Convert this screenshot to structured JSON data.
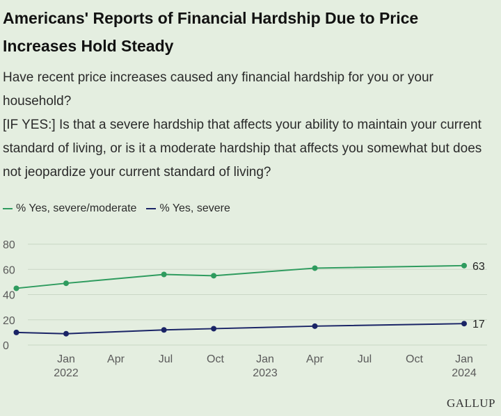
{
  "title": "Americans' Reports of Financial Hardship Due to Price Increases Hold Steady",
  "question_line1": "Have recent price increases caused any financial hardship for you or your household?",
  "question_line2": "[IF YES:] Is that a severe hardship that affects your ability to maintain your current standard of living, or is it a moderate hardship that affects you somewhat but does not jeopardize your current standard of living?",
  "source_logo": "GALLUP",
  "colors": {
    "background": "#e4eee0",
    "severe_moderate": "#2e9b5e",
    "severe": "#1a2466",
    "grid": "#c9d6c5"
  },
  "chart_data": {
    "type": "line",
    "title": "Americans' Reports of Financial Hardship Due to Price Increases Hold Steady",
    "xlabel": "",
    "ylabel": "",
    "ylim": [
      0,
      80
    ],
    "yticks": [
      0,
      20,
      40,
      60,
      80
    ],
    "xlim_months": [
      0,
      26.5
    ],
    "xticks": [
      {
        "month": 3.5,
        "label": "Jan",
        "year": "2022"
      },
      {
        "month": 6.5,
        "label": "Apr",
        "year": ""
      },
      {
        "month": 9.5,
        "label": "Jul",
        "year": ""
      },
      {
        "month": 12.5,
        "label": "Oct",
        "year": ""
      },
      {
        "month": 15.5,
        "label": "Jan",
        "year": "2023"
      },
      {
        "month": 18.5,
        "label": "Apr",
        "year": ""
      },
      {
        "month": 21.5,
        "label": "Jul",
        "year": ""
      },
      {
        "month": 24.5,
        "label": "Oct",
        "year": ""
      },
      {
        "month": 27.5,
        "label": "Jan",
        "year": "2024"
      }
    ],
    "legend_position": "top-left",
    "series": [
      {
        "name": "% Yes, severe/moderate",
        "color": "#2e9b5e",
        "points": [
          {
            "month": 0.5,
            "value": 45
          },
          {
            "month": 3.5,
            "value": 49
          },
          {
            "month": 9.4,
            "value": 56
          },
          {
            "month": 12.4,
            "value": 55
          },
          {
            "month": 18.5,
            "value": 61
          },
          {
            "month": 27.5,
            "value": 63
          }
        ],
        "end_label": "63"
      },
      {
        "name": "% Yes, severe",
        "color": "#1a2466",
        "points": [
          {
            "month": 0.5,
            "value": 10
          },
          {
            "month": 3.5,
            "value": 9
          },
          {
            "month": 9.4,
            "value": 12
          },
          {
            "month": 12.4,
            "value": 13
          },
          {
            "month": 18.5,
            "value": 15
          },
          {
            "month": 27.5,
            "value": 17
          }
        ],
        "end_label": "17"
      }
    ]
  }
}
